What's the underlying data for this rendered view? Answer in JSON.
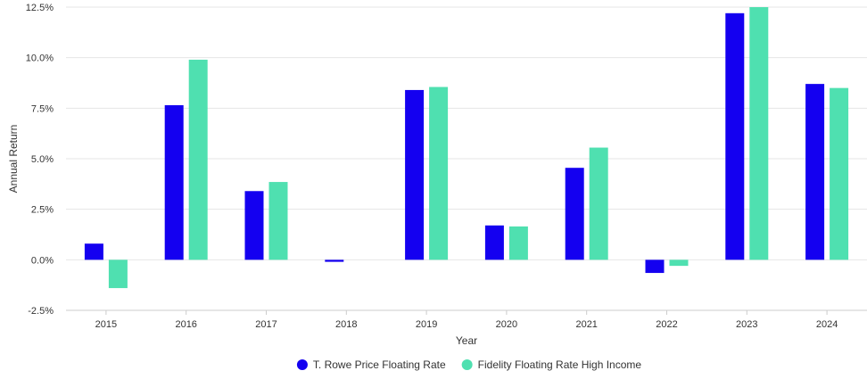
{
  "chart_data": {
    "type": "bar",
    "categories": [
      "2015",
      "2016",
      "2017",
      "2018",
      "2019",
      "2020",
      "2021",
      "2022",
      "2023",
      "2024"
    ],
    "series": [
      {
        "name": "T. Rowe Price Floating Rate",
        "color": "#1400f0",
        "values": [
          0.8,
          7.65,
          3.4,
          -0.1,
          8.4,
          1.7,
          4.55,
          -0.65,
          12.2,
          8.7
        ]
      },
      {
        "name": "Fidelity Floating Rate High Income",
        "color": "#4fe0b0",
        "values": [
          -1.4,
          9.9,
          3.85,
          0.0,
          8.55,
          1.65,
          5.55,
          -0.3,
          12.5,
          8.5
        ]
      }
    ],
    "xlabel": "Year",
    "ylabel": "Annual Return",
    "ylim": [
      -2.5,
      12.5
    ],
    "yticks": [
      "-2.5%",
      "0.0%",
      "2.5%",
      "5.0%",
      "7.5%",
      "10.0%",
      "12.5%"
    ],
    "grid": true,
    "legend_position": "bottom-center"
  }
}
